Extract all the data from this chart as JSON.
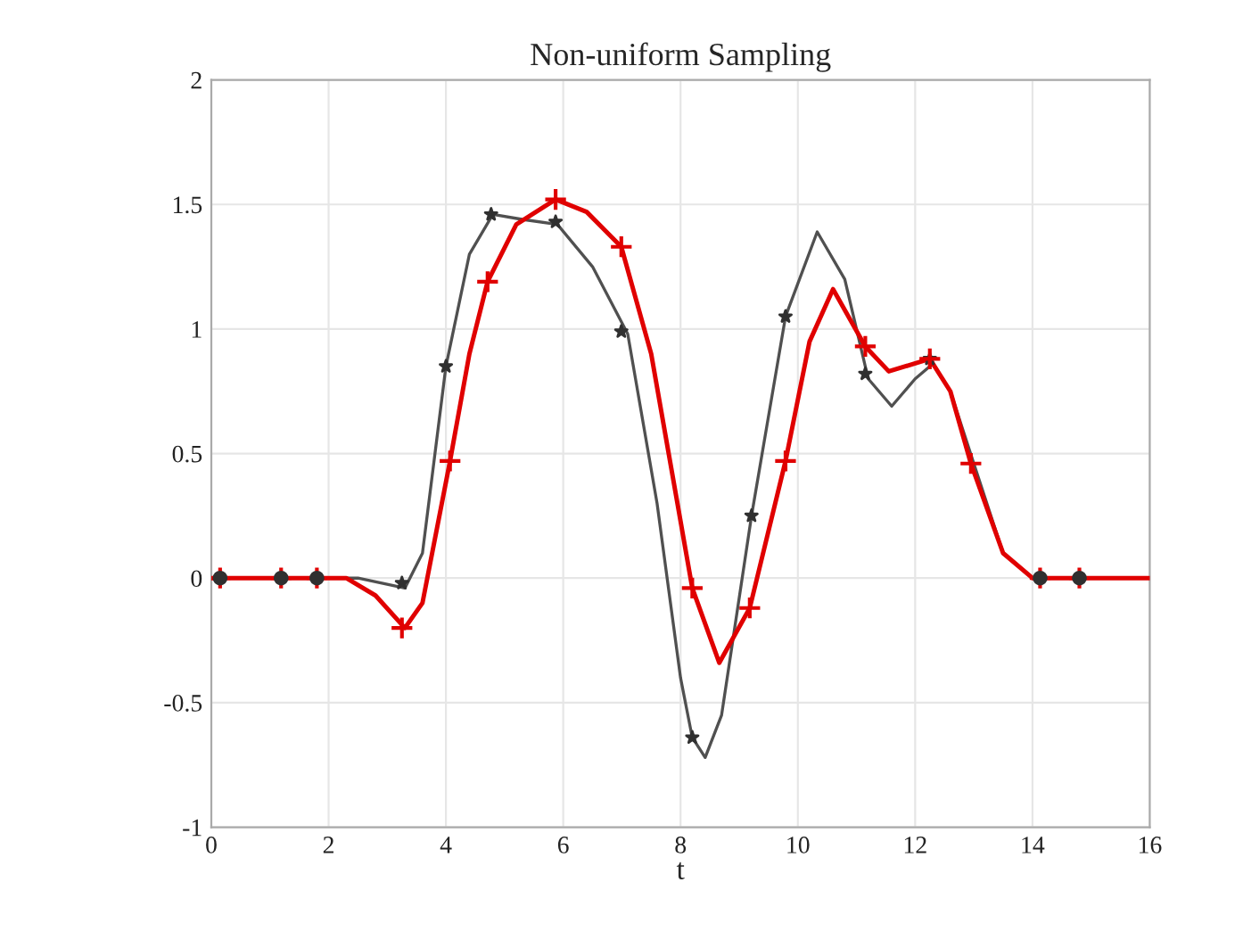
{
  "chart_data": {
    "type": "line",
    "title": "Non-uniform Sampling",
    "xlabel": "t",
    "xlim": [
      0,
      16
    ],
    "xticks": [
      0,
      2,
      4,
      6,
      8,
      10,
      12,
      14,
      16
    ],
    "ylim": [
      -1,
      2
    ],
    "yticks": [
      -1,
      -0.5,
      0,
      0.5,
      1,
      1.5,
      2
    ],
    "grid": true,
    "series": [
      {
        "color": "#505050",
        "x": [
          0,
          2.5,
          3.3,
          3.6,
          4.0,
          4.4,
          4.8,
          5.3,
          5.9,
          6.5,
          7.1,
          7.6,
          8.0,
          8.2,
          8.42,
          8.7,
          9.21,
          9.79,
          10.33,
          10.8,
          11.2,
          11.6,
          12.0,
          12.3,
          12.6,
          13.0,
          13.5,
          14.0,
          16
        ],
        "values": [
          0,
          0,
          -0.04,
          0.1,
          0.85,
          1.3,
          1.46,
          1.44,
          1.42,
          1.25,
          0.98,
          0.3,
          -0.4,
          -0.64,
          -0.72,
          -0.55,
          0.25,
          1.05,
          1.39,
          1.2,
          0.8,
          0.69,
          0.8,
          0.86,
          0.75,
          0.46,
          0.1,
          0,
          0
        ]
      },
      {
        "color": "#e00000",
        "x": [
          0,
          2.3,
          2.8,
          3.3,
          3.6,
          4.07,
          4.4,
          4.71,
          5.2,
          5.87,
          6.4,
          6.99,
          7.5,
          8.2,
          8.66,
          9.18,
          9.79,
          10.2,
          10.6,
          11.15,
          11.55,
          12.25,
          12.6,
          12.95,
          13.5,
          14.0,
          16
        ],
        "values": [
          0,
          0,
          -0.07,
          -0.2,
          -0.1,
          0.47,
          0.9,
          1.19,
          1.42,
          1.52,
          1.47,
          1.33,
          0.9,
          -0.04,
          -0.34,
          -0.12,
          0.47,
          0.95,
          1.16,
          0.93,
          0.83,
          0.88,
          0.75,
          0.46,
          0.1,
          0,
          0
        ]
      },
      {
        "type": "scatter",
        "color": "#303030",
        "marker": "star",
        "x": [
          3.25,
          4.0,
          4.77,
          5.87,
          6.99,
          8.2,
          9.21,
          9.79,
          11.15,
          12.25
        ],
        "values": [
          -0.02,
          0.85,
          1.46,
          1.43,
          0.99,
          -0.64,
          0.25,
          1.05,
          0.82,
          0.88
        ]
      },
      {
        "type": "scatter",
        "color": "#e00000",
        "marker": "cross",
        "x": [
          0.15,
          1.19,
          1.8,
          3.25,
          4.07,
          4.71,
          5.87,
          6.99,
          8.2,
          9.18,
          9.79,
          11.15,
          12.25,
          12.95,
          14.13,
          14.8
        ],
        "values": [
          0,
          0,
          0,
          -0.2,
          0.47,
          1.19,
          1.52,
          1.33,
          -0.04,
          -0.12,
          0.47,
          0.93,
          0.88,
          0.46,
          0,
          0
        ]
      },
      {
        "type": "scatter",
        "color": "#303030",
        "marker": "circle",
        "x": [
          0.15,
          1.19,
          1.8,
          14.13,
          14.8
        ],
        "values": [
          0,
          0,
          0,
          0,
          0
        ]
      }
    ]
  }
}
